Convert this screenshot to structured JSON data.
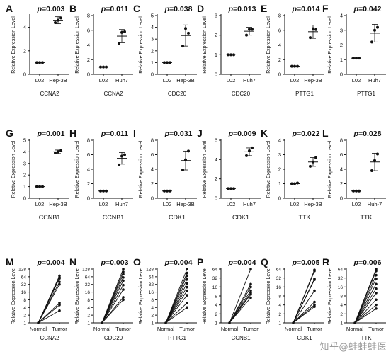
{
  "axis_title": "Relative Expression Level",
  "watermark": "知乎@蛙蛙蛙医",
  "colors": {
    "ink": "#111111",
    "point": "#111111"
  },
  "chart_data": [
    {
      "letter": "A",
      "type": "scatter",
      "p": "p=0.003",
      "gene": "CCNA2",
      "groups": [
        "L02",
        "Hep-3B"
      ],
      "ylim": [
        0,
        5
      ],
      "ticks": [
        0,
        2,
        4
      ],
      "points": [
        [
          1.0,
          1.0,
          1.0
        ],
        [
          4.4,
          4.8,
          4.6
        ]
      ],
      "mean": [
        1.0,
        4.6
      ],
      "sd": [
        0.0,
        0.3
      ]
    },
    {
      "letter": "B",
      "type": "scatter",
      "p": "p=0.011",
      "gene": "CCNA2",
      "groups": [
        "L02",
        "Huh7"
      ],
      "ylim": [
        0,
        8
      ],
      "ticks": [
        0,
        2,
        4,
        6,
        8
      ],
      "points": [
        [
          1.0,
          1.0,
          1.0
        ],
        [
          4.2,
          5.8,
          5.7
        ]
      ],
      "mean": [
        1.0,
        5.2
      ],
      "sd": [
        0.0,
        0.9
      ]
    },
    {
      "letter": "C",
      "type": "scatter",
      "p": "p=0.038",
      "gene": "CDC20",
      "groups": [
        "L02",
        "Hep-3B"
      ],
      "ylim": [
        0,
        5
      ],
      "ticks": [
        0,
        1,
        2,
        3,
        4,
        5
      ],
      "points": [
        [
          1.0,
          1.0,
          1.0
        ],
        [
          2.4,
          3.5,
          3.9
        ]
      ],
      "mean": [
        1.0,
        3.3
      ],
      "sd": [
        0.0,
        0.9
      ]
    },
    {
      "letter": "D",
      "type": "scatter",
      "p": "p=0.013",
      "gene": "CDC20",
      "groups": [
        "L02",
        "Huh7"
      ],
      "ylim": [
        0,
        3
      ],
      "ticks": [
        0,
        1,
        2,
        3
      ],
      "points": [
        [
          1.0,
          1.0,
          1.0
        ],
        [
          2.0,
          2.3,
          2.3
        ]
      ],
      "mean": [
        1.0,
        2.2
      ],
      "sd": [
        0.0,
        0.2
      ]
    },
    {
      "letter": "E",
      "type": "scatter",
      "p": "p=0.014",
      "gene": "PTTG1",
      "groups": [
        "L02",
        "Hep-3B"
      ],
      "ylim": [
        0,
        8
      ],
      "ticks": [
        0,
        2,
        4,
        6,
        8
      ],
      "points": [
        [
          1.1,
          1.1,
          1.1
        ],
        [
          5.0,
          6.1,
          6.2
        ]
      ],
      "mean": [
        1.1,
        5.8
      ],
      "sd": [
        0.0,
        0.9
      ]
    },
    {
      "letter": "F",
      "type": "scatter",
      "p": "p=0.042",
      "gene": "PTTG1",
      "groups": [
        "L02",
        "Huh7"
      ],
      "ylim": [
        0,
        4
      ],
      "ticks": [
        0,
        1,
        2,
        3,
        4
      ],
      "points": [
        [
          1.1,
          1.1,
          1.1
        ],
        [
          2.2,
          3.2,
          3.0
        ]
      ],
      "mean": [
        1.1,
        2.8
      ],
      "sd": [
        0.0,
        0.6
      ]
    },
    {
      "letter": "G",
      "type": "scatter",
      "p": "p=0.001",
      "gene": "CCNB1",
      "groups": [
        "L02",
        "Hep-3B"
      ],
      "ylim": [
        0,
        5
      ],
      "ticks": [
        0,
        1,
        2,
        3,
        4,
        5
      ],
      "points": [
        [
          1.0,
          1.0,
          1.0
        ],
        [
          3.9,
          4.1,
          4.0
        ]
      ],
      "mean": [
        1.0,
        4.0
      ],
      "sd": [
        0.0,
        0.15
      ]
    },
    {
      "letter": "H",
      "type": "scatter",
      "p": "p=0.011",
      "gene": "CCNB1",
      "groups": [
        "L02",
        "Huh7"
      ],
      "ylim": [
        0,
        8
      ],
      "ticks": [
        0,
        2,
        4,
        6,
        8
      ],
      "points": [
        [
          1.0,
          1.0,
          1.0
        ],
        [
          4.6,
          6.0,
          5.8
        ]
      ],
      "mean": [
        1.0,
        5.5
      ],
      "sd": [
        0.0,
        0.8
      ]
    },
    {
      "letter": "I",
      "type": "scatter",
      "p": "p=0.031",
      "gene": "CDK1",
      "groups": [
        "L02",
        "Hep-3B"
      ],
      "ylim": [
        0,
        8
      ],
      "ticks": [
        0,
        2,
        4,
        6,
        8
      ],
      "points": [
        [
          1.0,
          1.0,
          1.0
        ],
        [
          3.9,
          6.5,
          5.3
        ]
      ],
      "mean": [
        1.0,
        5.2
      ],
      "sd": [
        0.0,
        1.3
      ]
    },
    {
      "letter": "J",
      "type": "scatter",
      "p": "p=0.009",
      "gene": "CDK1",
      "groups": [
        "L02",
        "Huh7"
      ],
      "ylim": [
        0,
        6
      ],
      "ticks": [
        0,
        2,
        4,
        6
      ],
      "points": [
        [
          1.0,
          1.0,
          1.0
        ],
        [
          4.4,
          5.2,
          4.9
        ]
      ],
      "mean": [
        1.0,
        4.8
      ],
      "sd": [
        0.0,
        0.4
      ]
    },
    {
      "letter": "K",
      "type": "scatter",
      "p": "p=0.022",
      "gene": "TTK",
      "groups": [
        "L02",
        "Hep-3B"
      ],
      "ylim": [
        0,
        4
      ],
      "ticks": [
        0,
        1,
        2,
        3,
        4
      ],
      "points": [
        [
          1.0,
          1.05,
          1.0
        ],
        [
          2.2,
          2.8,
          2.5
        ]
      ],
      "mean": [
        1.0,
        2.5
      ],
      "sd": [
        0.0,
        0.3
      ]
    },
    {
      "letter": "L",
      "type": "scatter",
      "p": "p=0.028",
      "gene": "TTK",
      "groups": [
        "L02",
        "Huh-7"
      ],
      "ylim": [
        0,
        8
      ],
      "ticks": [
        0,
        2,
        4,
        6,
        8
      ],
      "points": [
        [
          1.0,
          1.0,
          1.0
        ],
        [
          3.8,
          6.1,
          5.2
        ]
      ],
      "mean": [
        1.0,
        5.0
      ],
      "sd": [
        0.0,
        1.2
      ]
    },
    {
      "letter": "M",
      "type": "line",
      "p": "p=0.004",
      "gene": "CCNA2",
      "groups": [
        "Normal",
        "Tumor"
      ],
      "log2": true,
      "ticks": [
        1,
        2,
        4,
        8,
        16,
        32,
        64,
        128
      ],
      "tumor": [
        70,
        60,
        55,
        40,
        32,
        6,
        5,
        3
      ]
    },
    {
      "letter": "N",
      "type": "line",
      "p": "p=0.003",
      "gene": "CDC20",
      "groups": [
        "Normal",
        "Tumor"
      ],
      "log2": true,
      "ticks": [
        1,
        2,
        4,
        8,
        16,
        32,
        64,
        128
      ],
      "tumor": [
        128,
        100,
        80,
        60,
        45,
        30,
        20,
        10,
        8
      ]
    },
    {
      "letter": "O",
      "type": "line",
      "p": "p=0.004",
      "gene": "PTTG1",
      "groups": [
        "Normal",
        "Tumor"
      ],
      "log2": true,
      "ticks": [
        1,
        2,
        4,
        8,
        16,
        32,
        64,
        128
      ],
      "tumor": [
        128,
        90,
        70,
        50,
        35,
        25,
        18,
        12,
        6,
        4
      ]
    },
    {
      "letter": "P",
      "type": "line",
      "p": "p=0.004",
      "gene": "CCNB1",
      "groups": [
        "Normal",
        "Tumor"
      ],
      "log2": true,
      "ticks": [
        1,
        2,
        4,
        8,
        16,
        32,
        64
      ],
      "tumor": [
        64,
        20,
        16,
        12,
        10,
        9,
        7
      ]
    },
    {
      "letter": "Q",
      "type": "line",
      "p": "p=0.005",
      "gene": "CDK1",
      "groups": [
        "Normal",
        "Tumor"
      ],
      "log2": true,
      "ticks": [
        1,
        2,
        4,
        8,
        16,
        32,
        64
      ],
      "tumor": [
        60,
        55,
        30,
        28,
        12,
        5,
        4,
        3.5
      ]
    },
    {
      "letter": "R",
      "type": "line",
      "p": "p=0.006",
      "gene": "TTK",
      "groups": [
        "Normal",
        "Tumor"
      ],
      "log2": true,
      "ticks": [
        1,
        2,
        4,
        8,
        16,
        32,
        64
      ],
      "tumor": [
        64,
        55,
        40,
        30,
        20,
        14,
        10,
        6,
        4,
        3
      ]
    }
  ]
}
